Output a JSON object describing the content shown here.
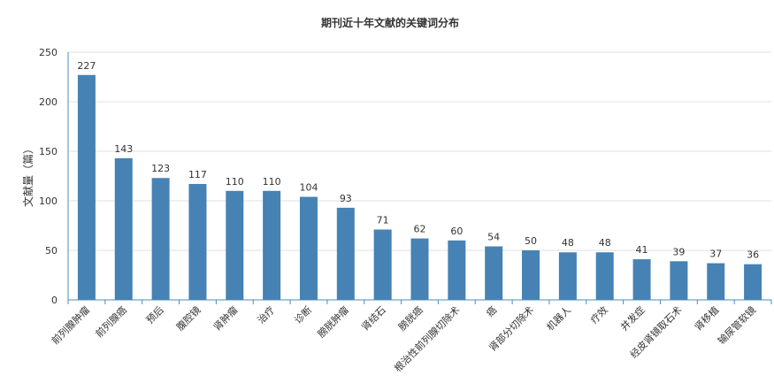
{
  "chart_data": {
    "type": "bar",
    "title": "期刊近十年文献的关键词分布",
    "ylabel": "文献量（篇）",
    "xlabel": "",
    "ylim": [
      0,
      250
    ],
    "yticks": [
      0,
      50,
      100,
      150,
      200,
      250
    ],
    "grid": true,
    "categories": [
      "前列腺肿瘤",
      "前列腺癌",
      "预后",
      "腹腔镜",
      "肾肿瘤",
      "治疗",
      "诊断",
      "膀胱肿瘤",
      "肾结石",
      "膀胱癌",
      "根治性前列腺切除术",
      "癌",
      "肾部分切除术",
      "机器人",
      "疗效",
      "并发症",
      "经皮肾镜取石术",
      "肾移植",
      "输尿管软镜"
    ],
    "values": [
      227,
      143,
      123,
      117,
      110,
      110,
      104,
      93,
      71,
      62,
      60,
      54,
      50,
      48,
      48,
      41,
      39,
      37,
      36
    ],
    "colors": {
      "bar": "#4682b4",
      "axis": "#4b8bbd",
      "grid": "#e0e0e0",
      "text": "#333333"
    }
  }
}
